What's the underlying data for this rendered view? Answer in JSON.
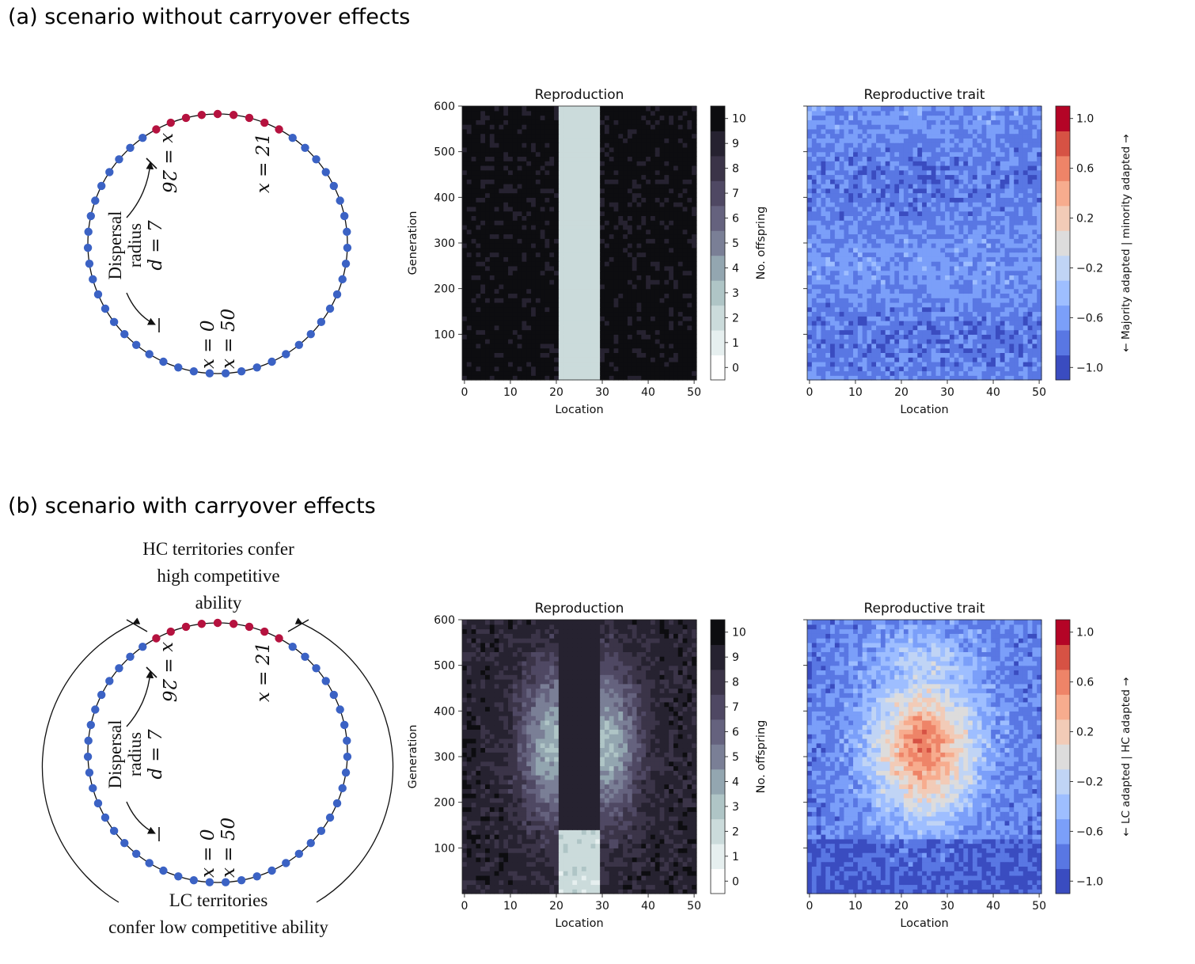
{
  "panel_a": {
    "heading": "(a) scenario without carryover effects",
    "ring": {
      "n_sites": 51,
      "red_sites": [
        21,
        22,
        23,
        24,
        25,
        26,
        27,
        28,
        29
      ],
      "colors": {
        "red": "#b5123f",
        "blue": "#3b62c4"
      },
      "labels": {
        "x26": "x = 26",
        "x21": "x = 21",
        "x0": "x = 0",
        "x50": "x = 50",
        "dispersal_line1": "Dispersal",
        "dispersal_line2": "radius",
        "dispersal_d": "d = 7"
      }
    }
  },
  "panel_b": {
    "heading": "(b) scenario with carryover effects",
    "ring": {
      "n_sites": 51,
      "red_sites": [
        21,
        22,
        23,
        24,
        25,
        26,
        27,
        28,
        29
      ],
      "colors": {
        "red": "#b5123f",
        "blue": "#3b62c4"
      },
      "labels": {
        "x26": "x = 26",
        "x21": "x = 21",
        "x0": "x = 0",
        "x50": "x = 50",
        "dispersal_line1": "Dispersal",
        "dispersal_line2": "radius",
        "dispersal_d": "d = 7"
      },
      "hc_note": [
        "HC territories confer",
        "high competitive",
        "ability"
      ],
      "lc_note": [
        "LC territories",
        "confer low competitive ability"
      ]
    }
  },
  "chart_data": [
    {
      "id": "a-reproduction",
      "type": "heatmap",
      "title": "Reproduction",
      "xlabel": "Location",
      "ylabel": "Generation",
      "xlim": [
        0,
        51
      ],
      "ylim": [
        0,
        600
      ],
      "xticks": [
        0,
        10,
        20,
        30,
        40,
        50
      ],
      "yticks": [
        100,
        200,
        300,
        400,
        500,
        600
      ],
      "colorbar": {
        "label": "No. offspring",
        "ticks": [
          0,
          1,
          2,
          3,
          4,
          5,
          6,
          7,
          8,
          9,
          10
        ],
        "colors": [
          "#ffffff",
          "#e6efef",
          "#cbdbdb",
          "#afc5c6",
          "#93a6b0",
          "#7a7f96",
          "#65627e",
          "#4f4863",
          "#3b3448",
          "#262230",
          "#0d0d10"
        ]
      },
      "description": "Locations 21-29 (HC territories) ~2 offspring at all generations; all other locations ~10 offspring",
      "hc_band": [
        21,
        29
      ],
      "hc_value": 2,
      "outside_value": 10
    },
    {
      "id": "a-trait",
      "type": "heatmap",
      "title": "Reproductive trait",
      "xlabel": "Location",
      "ylabel": "",
      "xlim": [
        0,
        51
      ],
      "ylim": [
        0,
        600
      ],
      "xticks": [
        0,
        10,
        20,
        30,
        40,
        50
      ],
      "colorbar": {
        "label": "← Majority adapted | minority adapted →",
        "label_parts": {
          "low": "Majority adapted",
          "high": "minority adapted"
        },
        "ticks": [
          1.0,
          0.6,
          0.2,
          -0.2,
          -0.6,
          -1.0
        ],
        "tick_labels": [
          "1.0",
          "0.6",
          "0.2",
          "−0.2",
          "−0.6",
          "−1.0"
        ],
        "colors": [
          "#3a4cc0",
          "#5977e3",
          "#7b9ff9",
          "#9ebeff",
          "#c0d4f5",
          "#dddcdc",
          "#f2cbb7",
          "#f7ac8e",
          "#ee8468",
          "#d65244",
          "#b40426"
        ]
      },
      "description": "Uniformly majority adapted (~ -0.75) at all locations and generations"
    },
    {
      "id": "b-reproduction",
      "type": "heatmap",
      "title": "Reproduction",
      "xlabel": "Location",
      "ylabel": "Generation",
      "xlim": [
        0,
        51
      ],
      "ylim": [
        0,
        600
      ],
      "xticks": [
        0,
        10,
        20,
        30,
        40,
        50
      ],
      "yticks": [
        100,
        200,
        300,
        400,
        500,
        600
      ],
      "colorbar": {
        "label": "No. offspring",
        "ticks": [
          0,
          1,
          2,
          3,
          4,
          5,
          6,
          7,
          8,
          9,
          10
        ],
        "colors": [
          "#ffffff",
          "#e6efef",
          "#cbdbdb",
          "#afc5c6",
          "#93a6b0",
          "#7a7f96",
          "#65627e",
          "#4f4863",
          "#3b3448",
          "#262230",
          "#0d0d10"
        ]
      },
      "description": "HC band (21-29) ~2 offspring early (gen < 150), ~10 later; flanking locations ~3-6 during mid generations"
    },
    {
      "id": "b-trait",
      "type": "heatmap",
      "title": "Reproductive trait",
      "xlabel": "Location",
      "ylabel": "",
      "xlim": [
        0,
        51
      ],
      "ylim": [
        0,
        600
      ],
      "xticks": [
        0,
        10,
        20,
        30,
        40,
        50
      ],
      "colorbar": {
        "label": "← LC adapted | HC adapted →",
        "label_parts": {
          "low": "LC adapted",
          "high": "HC adapted"
        },
        "ticks": [
          1.0,
          0.6,
          0.2,
          -0.2,
          -0.6,
          -1.0
        ],
        "tick_labels": [
          "1.0",
          "0.6",
          "0.2",
          "−0.2",
          "−0.6",
          "−1.0"
        ],
        "colors": [
          "#3a4cc0",
          "#5977e3",
          "#7b9ff9",
          "#9ebeff",
          "#c0d4f5",
          "#dddcdc",
          "#f2cbb7",
          "#f7ac8e",
          "#ee8468",
          "#d65244",
          "#b40426"
        ]
      },
      "description": "HC adapted (up to ~0.6) around locations 15-35 during generations 200-500 (peak near location 25, generation 300); LC adapted elsewhere and early"
    }
  ]
}
